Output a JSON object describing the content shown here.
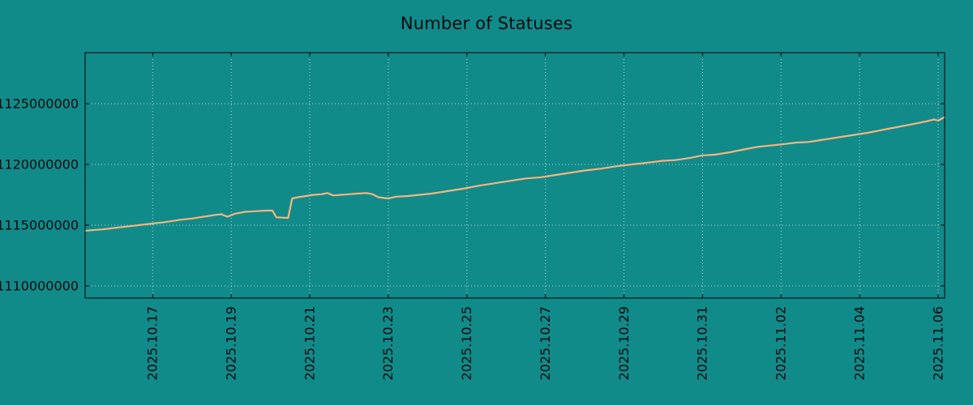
{
  "page": {
    "background": "#118a8a"
  },
  "chart_data": {
    "type": "line",
    "title": "Number of Statuses",
    "bg_color": "#118a8a",
    "line_color": "#f4b57e",
    "grid_color": "#cfe3e3",
    "axis_color": "#000000",
    "text_color": "#0b0b0b",
    "x_axis_note": "x values are day numbers: Oct 17 2025 = 17 ... Nov 6 2025 = 37",
    "x_range": [
      15.28,
      37.165
    ],
    "y_range": [
      1109000000,
      1129200000
    ],
    "grid": true,
    "legend": "none",
    "x_ticks": [
      {
        "t": 17,
        "label": "2025.10.17"
      },
      {
        "t": 19,
        "label": "2025.10.19"
      },
      {
        "t": 21,
        "label": "2025.10.21"
      },
      {
        "t": 23,
        "label": "2025.10.23"
      },
      {
        "t": 25,
        "label": "2025.10.25"
      },
      {
        "t": 27,
        "label": "2025.10.27"
      },
      {
        "t": 29,
        "label": "2025.10.29"
      },
      {
        "t": 31,
        "label": "2025.10.31"
      },
      {
        "t": 33,
        "label": "2025.11.02"
      },
      {
        "t": 35,
        "label": "2025.11.04"
      },
      {
        "t": 37,
        "label": "2025.11.06"
      }
    ],
    "y_ticks": [
      {
        "v": 1110000000,
        "label": "1110000000"
      },
      {
        "v": 1115000000,
        "label": "1115000000"
      },
      {
        "v": 1120000000,
        "label": "1120000000"
      },
      {
        "v": 1125000000,
        "label": "1125000000"
      }
    ],
    "series": [
      {
        "name": "statuses",
        "points": [
          [
            15.28,
            1114550000
          ],
          [
            15.7,
            1114650000
          ],
          [
            16.1,
            1114800000
          ],
          [
            16.5,
            1114950000
          ],
          [
            16.9,
            1115100000
          ],
          [
            17.3,
            1115250000
          ],
          [
            17.7,
            1115450000
          ],
          [
            18.0,
            1115550000
          ],
          [
            18.3,
            1115700000
          ],
          [
            18.6,
            1115850000
          ],
          [
            18.75,
            1115900000
          ],
          [
            18.9,
            1115700000
          ],
          [
            19.1,
            1115950000
          ],
          [
            19.35,
            1116100000
          ],
          [
            19.6,
            1116150000
          ],
          [
            19.9,
            1116200000
          ],
          [
            20.05,
            1116200000
          ],
          [
            20.15,
            1115650000
          ],
          [
            20.45,
            1115600000
          ],
          [
            20.55,
            1117200000
          ],
          [
            20.7,
            1117300000
          ],
          [
            20.9,
            1117400000
          ],
          [
            21.1,
            1117500000
          ],
          [
            21.3,
            1117550000
          ],
          [
            21.45,
            1117650000
          ],
          [
            21.6,
            1117450000
          ],
          [
            21.8,
            1117500000
          ],
          [
            22.0,
            1117550000
          ],
          [
            22.2,
            1117600000
          ],
          [
            22.45,
            1117650000
          ],
          [
            22.6,
            1117550000
          ],
          [
            22.75,
            1117300000
          ],
          [
            23.0,
            1117200000
          ],
          [
            23.2,
            1117350000
          ],
          [
            23.5,
            1117400000
          ],
          [
            23.8,
            1117500000
          ],
          [
            24.1,
            1117600000
          ],
          [
            24.5,
            1117800000
          ],
          [
            24.9,
            1118000000
          ],
          [
            25.3,
            1118250000
          ],
          [
            25.7,
            1118450000
          ],
          [
            26.1,
            1118650000
          ],
          [
            26.5,
            1118850000
          ],
          [
            26.9,
            1118950000
          ],
          [
            27.2,
            1119100000
          ],
          [
            27.6,
            1119300000
          ],
          [
            28.0,
            1119500000
          ],
          [
            28.4,
            1119650000
          ],
          [
            28.8,
            1119850000
          ],
          [
            29.2,
            1120000000
          ],
          [
            29.6,
            1120150000
          ],
          [
            30.0,
            1120300000
          ],
          [
            30.3,
            1120350000
          ],
          [
            30.7,
            1120550000
          ],
          [
            31.0,
            1120750000
          ],
          [
            31.3,
            1120800000
          ],
          [
            31.7,
            1121000000
          ],
          [
            32.0,
            1121200000
          ],
          [
            32.4,
            1121450000
          ],
          [
            32.7,
            1121550000
          ],
          [
            33.0,
            1121650000
          ],
          [
            33.4,
            1121800000
          ],
          [
            33.7,
            1121850000
          ],
          [
            34.0,
            1122000000
          ],
          [
            34.4,
            1122200000
          ],
          [
            34.8,
            1122400000
          ],
          [
            35.2,
            1122600000
          ],
          [
            35.6,
            1122850000
          ],
          [
            36.0,
            1123100000
          ],
          [
            36.4,
            1123350000
          ],
          [
            36.7,
            1123550000
          ],
          [
            36.9,
            1123700000
          ],
          [
            37.0,
            1123600000
          ],
          [
            37.165,
            1123900000
          ]
        ]
      }
    ]
  }
}
